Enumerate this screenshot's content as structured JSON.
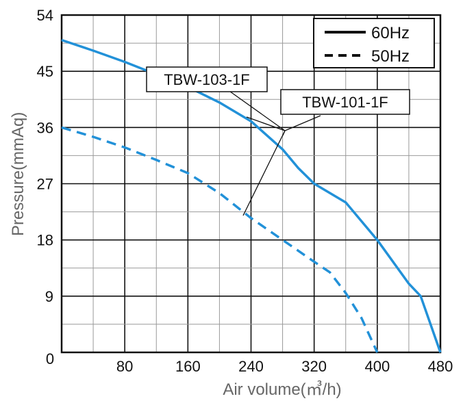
{
  "chart_data": {
    "type": "line",
    "xlabel": "Air volume(㎥/h)",
    "ylabel": "Pressure(mmAq)",
    "xlim": [
      0,
      480
    ],
    "ylim": [
      0,
      54
    ],
    "x_ticks": [
      80,
      160,
      240,
      320,
      400,
      480
    ],
    "y_ticks": [
      0,
      9,
      18,
      27,
      36,
      45,
      54
    ],
    "grid": true,
    "x_minor_step": 40,
    "y_minor_step": 4.5,
    "legend_position": "top-right",
    "legend": [
      {
        "label": "60Hz",
        "style": "solid"
      },
      {
        "label": "50Hz",
        "style": "dashed"
      }
    ],
    "annotations": [
      "TBW-103-1F",
      "TBW-101-1F"
    ],
    "series": [
      {
        "style": "solid",
        "color": "#2291d8",
        "x": [
          0,
          40,
          80,
          120,
          160,
          200,
          240,
          280,
          300,
          320,
          360,
          400,
          440,
          455,
          480
        ],
        "y": [
          50,
          48.3,
          46.5,
          44.5,
          42.5,
          40,
          37,
          32.5,
          29.5,
          27,
          24,
          18,
          11,
          9,
          0
        ]
      },
      {
        "style": "dashed",
        "color": "#2291d8",
        "x": [
          0,
          40,
          80,
          120,
          160,
          200,
          240,
          280,
          320,
          340,
          360,
          380,
          400
        ],
        "y": [
          36,
          34.5,
          32.8,
          30.8,
          28.7,
          25.5,
          21.5,
          18,
          14.5,
          12.8,
          9.5,
          5.5,
          0
        ]
      }
    ]
  }
}
